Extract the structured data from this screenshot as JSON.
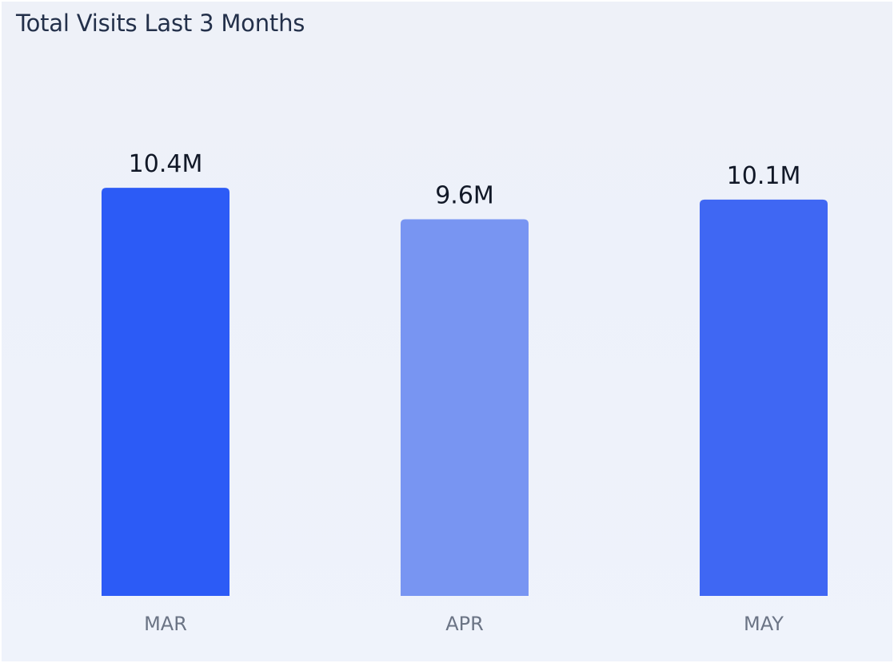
{
  "card": {
    "title": "Total Visits Last 3 Months"
  },
  "chart_data": {
    "type": "bar",
    "title": "Total Visits Last 3 Months",
    "categories": [
      "MAR",
      "APR",
      "MAY"
    ],
    "values": [
      10.4,
      9.6,
      10.1
    ],
    "value_labels": [
      "10.4M",
      "9.6M",
      "10.1M"
    ],
    "unit": "M",
    "ylim": [
      0,
      12.5
    ],
    "grid": false,
    "legend": "none",
    "bar_colors": [
      "#2c5bf6",
      "#7895f2",
      "#3f67f3"
    ]
  },
  "colors": {
    "card_background": "#eef1f8",
    "title_text": "#23304a",
    "value_text": "#111827",
    "category_text": "#6b7485"
  }
}
